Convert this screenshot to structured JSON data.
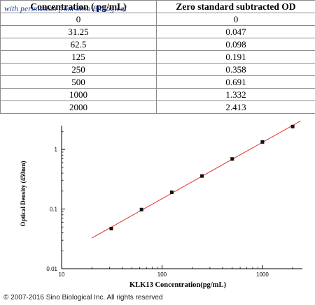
{
  "table": {
    "headers": [
      "Concentration ( pg/mL)",
      "Zero standard subtracted OD"
    ],
    "rows": [
      [
        "0",
        "0"
      ],
      [
        "31.25",
        "0.047"
      ],
      [
        "62.5",
        "0.098"
      ],
      [
        "125",
        "0.191"
      ],
      [
        "250",
        "0.358"
      ],
      [
        "500",
        "0.691"
      ],
      [
        "1000",
        "1.332"
      ],
      [
        "2000",
        "2.413"
      ]
    ]
  },
  "watermark": "with permission from Sino Biological",
  "copyright": "© 2007-2016 Sino Biological Inc. All rights reserved",
  "chart_data": {
    "type": "scatter",
    "title": "",
    "xlabel": "KLK13  Concentration(pg/mL)",
    "ylabel": "Optical Density (450nm)",
    "x_scale": "log",
    "y_scale": "log",
    "xlim": [
      10,
      2500
    ],
    "ylim": [
      0.01,
      2.5
    ],
    "x_ticks": [
      10,
      100,
      1000
    ],
    "x_tick_labels": [
      "10",
      "100",
      "1000"
    ],
    "y_ticks": [
      0.01,
      0.1,
      1
    ],
    "y_tick_labels": [
      "0.01",
      "0.1",
      "1"
    ],
    "grid": false,
    "points": {
      "x": [
        31.25,
        62.5,
        125,
        250,
        500,
        1000,
        2000
      ],
      "y": [
        0.047,
        0.098,
        0.191,
        0.358,
        0.691,
        1.332,
        2.413
      ]
    },
    "fit_line": {
      "x_start": 20,
      "x_end": 2400,
      "color": "#e0302a"
    },
    "marker_color": "#111111"
  }
}
